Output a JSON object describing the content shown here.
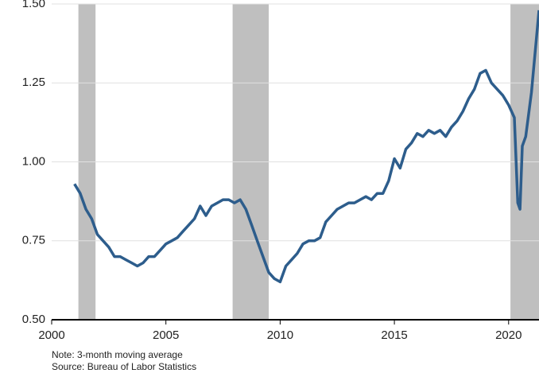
{
  "chart_data": {
    "type": "line",
    "notes": [
      "Note: 3-month moving average",
      "Source: Bureau of Labor Statistics"
    ],
    "xlim": [
      2000,
      2021.33
    ],
    "xticks": [
      2000,
      2005,
      2010,
      2015,
      2020
    ],
    "ylim": [
      0.5,
      1.5
    ],
    "yticks": [
      {
        "value": 0.5,
        "label": "0.50"
      },
      {
        "value": 0.75,
        "label": "0.75"
      },
      {
        "value": 1.0,
        "label": "1.00"
      },
      1.25,
      {
        "value": 1.5,
        "label": "1.50"
      }
    ],
    "grid": true,
    "recession_color": "#bfbfbf",
    "recessions": [
      [
        2001.17,
        2001.92
      ],
      [
        2007.92,
        2009.5
      ],
      [
        2020.08,
        2021.33
      ]
    ],
    "series": [
      {
        "color": "#2d5d8c",
        "x": [
          2001.0,
          2001.25,
          2001.5,
          2001.75,
          2002.0,
          2002.25,
          2002.5,
          2002.75,
          2003.0,
          2003.25,
          2003.5,
          2003.75,
          2004.0,
          2004.25,
          2004.5,
          2004.75,
          2005.0,
          2005.25,
          2005.5,
          2005.75,
          2006.0,
          2006.25,
          2006.5,
          2006.75,
          2007.0,
          2007.25,
          2007.5,
          2007.75,
          2008.0,
          2008.25,
          2008.5,
          2008.75,
          2009.0,
          2009.25,
          2009.5,
          2009.75,
          2010.0,
          2010.25,
          2010.5,
          2010.75,
          2011.0,
          2011.25,
          2011.5,
          2011.75,
          2012.0,
          2012.25,
          2012.5,
          2012.75,
          2013.0,
          2013.25,
          2013.5,
          2013.75,
          2014.0,
          2014.25,
          2014.5,
          2014.75,
          2015.0,
          2015.25,
          2015.5,
          2015.75,
          2016.0,
          2016.25,
          2016.5,
          2016.75,
          2017.0,
          2017.25,
          2017.5,
          2017.75,
          2018.0,
          2018.25,
          2018.5,
          2018.75,
          2019.0,
          2019.25,
          2019.5,
          2019.75,
          2020.0,
          2020.25,
          2020.4,
          2020.5,
          2020.6,
          2020.75,
          2021.0,
          2021.33
        ],
        "values": [
          0.93,
          0.9,
          0.85,
          0.82,
          0.77,
          0.75,
          0.73,
          0.7,
          0.7,
          0.69,
          0.68,
          0.67,
          0.68,
          0.7,
          0.7,
          0.72,
          0.74,
          0.75,
          0.76,
          0.78,
          0.8,
          0.82,
          0.86,
          0.83,
          0.86,
          0.87,
          0.88,
          0.88,
          0.87,
          0.88,
          0.85,
          0.8,
          0.75,
          0.7,
          0.65,
          0.63,
          0.62,
          0.67,
          0.69,
          0.71,
          0.74,
          0.75,
          0.75,
          0.76,
          0.81,
          0.83,
          0.85,
          0.86,
          0.87,
          0.87,
          0.88,
          0.89,
          0.88,
          0.9,
          0.9,
          0.94,
          1.01,
          0.98,
          1.04,
          1.06,
          1.09,
          1.08,
          1.1,
          1.09,
          1.1,
          1.08,
          1.11,
          1.13,
          1.16,
          1.2,
          1.23,
          1.28,
          1.29,
          1.25,
          1.23,
          1.21,
          1.18,
          1.14,
          0.87,
          0.85,
          1.05,
          1.08,
          1.22,
          1.48
        ]
      }
    ]
  }
}
